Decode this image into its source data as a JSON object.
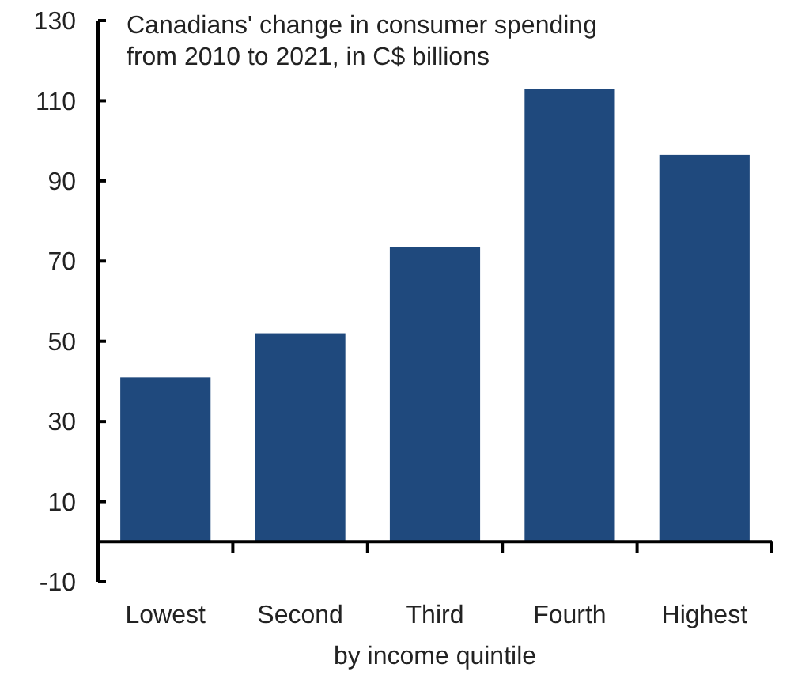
{
  "chart_data": {
    "type": "bar",
    "title": "Canadians' change in consumer spending\nfrom 2010 to 2021, in C$ billions",
    "xlabel": "by income quintile",
    "categories": [
      "Lowest",
      "Second",
      "Third",
      "Fourth",
      "Highest"
    ],
    "values": [
      41,
      52,
      73.5,
      113,
      96.5
    ],
    "color": "#1f497d",
    "ylim": [
      -10,
      130
    ],
    "yticks": [
      -10,
      10,
      30,
      50,
      70,
      90,
      110,
      130
    ],
    "grid": false
  }
}
